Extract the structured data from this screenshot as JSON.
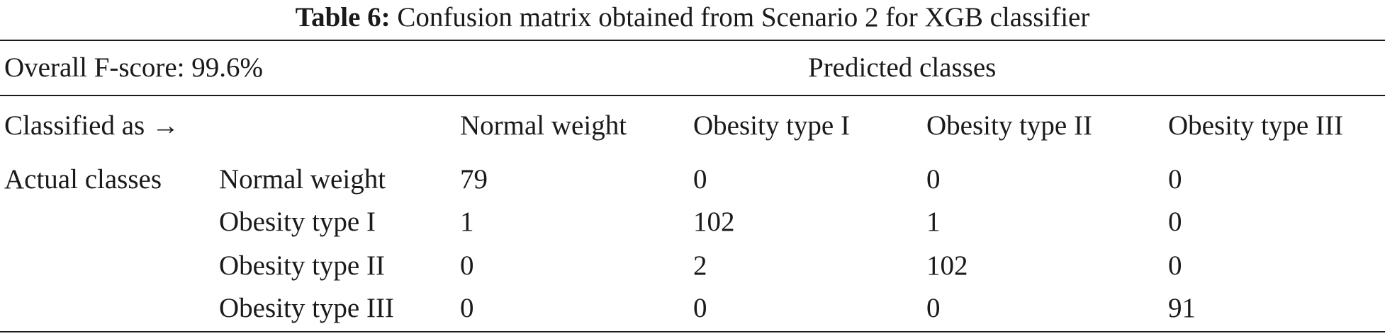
{
  "table": {
    "caption_label": "Table 6:",
    "caption_text": "Confusion matrix obtained from Scenario 2 for XGB classifier",
    "overall_fscore": "Overall F-score: 99.6%",
    "predicted_header": "Predicted classes",
    "classified_as": "Classified as →",
    "actual_header": "Actual classes",
    "columns": [
      "Normal weight",
      "Obesity type I",
      "Obesity type II",
      "Obesity type III"
    ],
    "rows": [
      {
        "label": "Normal weight",
        "values": [
          "79",
          "0",
          "0",
          "0"
        ]
      },
      {
        "label": "Obesity type I",
        "values": [
          "1",
          "102",
          "1",
          "0"
        ]
      },
      {
        "label": "Obesity type II",
        "values": [
          "0",
          "2",
          "102",
          "0"
        ]
      },
      {
        "label": "Obesity type III",
        "values": [
          "0",
          "0",
          "0",
          "91"
        ]
      }
    ]
  }
}
